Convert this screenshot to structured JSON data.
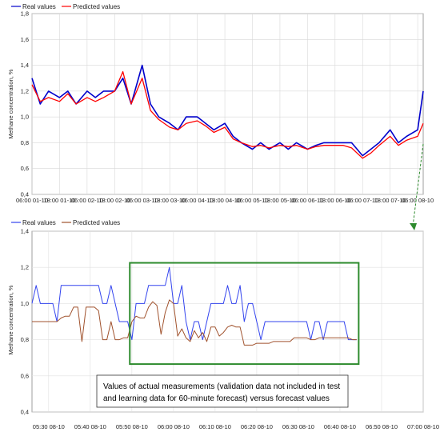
{
  "chart_data": [
    {
      "type": "line",
      "legend": [
        "Real values",
        "Predicted values"
      ],
      "legend_position": "top-left",
      "ylabel": "Methane concentration, %",
      "ylim": [
        0.4,
        1.8
      ],
      "yticks": [
        "0,4",
        "0,6",
        "0,8",
        "1,0",
        "1,2",
        "1,4",
        "1,6",
        "1,8"
      ],
      "xticks": [
        "06:00 01-10",
        "18:00 01-10",
        "06:00 02-10",
        "18:00 02-10",
        "06:00 03-10",
        "18:00 03-10",
        "06:00 04-10",
        "18:00 04-10",
        "06:00 05-10",
        "18:00 05-10",
        "06:00 06-10",
        "18:00 06-10",
        "06:00 07-10",
        "18:00 07-10",
        "06:00 08-10"
      ],
      "grid": true,
      "colors": {
        "real": "#0000cc",
        "predicted": "#ff0000"
      },
      "series": [
        {
          "name": "Real values",
          "x": [
            0,
            0.3,
            0.6,
            1,
            1.3,
            1.6,
            2,
            2.3,
            2.6,
            3,
            3.3,
            3.6,
            4,
            4.3,
            4.6,
            5,
            5.3,
            5.6,
            6,
            6.3,
            6.6,
            7,
            7.3,
            7.6,
            8,
            8.3,
            8.6,
            9,
            9.3,
            9.6,
            10,
            10.3,
            10.6,
            11,
            11.3,
            11.6,
            12,
            12.3,
            12.6,
            13,
            13.3,
            13.6,
            14,
            14.2
          ],
          "values": [
            1.3,
            1.1,
            1.2,
            1.15,
            1.2,
            1.1,
            1.2,
            1.15,
            1.2,
            1.2,
            1.3,
            1.1,
            1.4,
            1.1,
            1.0,
            0.95,
            0.9,
            1.0,
            1.0,
            0.95,
            0.9,
            0.95,
            0.85,
            0.8,
            0.75,
            0.8,
            0.75,
            0.8,
            0.75,
            0.8,
            0.75,
            0.78,
            0.8,
            0.8,
            0.8,
            0.8,
            0.7,
            0.75,
            0.8,
            0.9,
            0.8,
            0.85,
            0.9,
            1.2
          ]
        },
        {
          "name": "Predicted values",
          "x": [
            0,
            0.3,
            0.6,
            1,
            1.3,
            1.6,
            2,
            2.3,
            2.6,
            3,
            3.3,
            3.6,
            4,
            4.3,
            4.6,
            5,
            5.3,
            5.6,
            6,
            6.3,
            6.6,
            7,
            7.3,
            7.6,
            8,
            8.3,
            8.6,
            9,
            9.3,
            9.6,
            10,
            10.3,
            10.6,
            11,
            11.3,
            11.6,
            12,
            12.3,
            12.6,
            13,
            13.3,
            13.6,
            14,
            14.2
          ],
          "values": [
            1.25,
            1.12,
            1.15,
            1.12,
            1.18,
            1.1,
            1.15,
            1.12,
            1.15,
            1.2,
            1.35,
            1.1,
            1.3,
            1.05,
            0.98,
            0.92,
            0.9,
            0.95,
            0.97,
            0.93,
            0.88,
            0.92,
            0.83,
            0.8,
            0.77,
            0.78,
            0.76,
            0.78,
            0.77,
            0.78,
            0.75,
            0.77,
            0.78,
            0.78,
            0.78,
            0.76,
            0.68,
            0.72,
            0.78,
            0.85,
            0.78,
            0.82,
            0.85,
            0.95
          ]
        }
      ]
    },
    {
      "type": "line",
      "legend": [
        "Real values",
        "Predicted values"
      ],
      "legend_position": "top-left",
      "ylabel": "Methane concentration, %",
      "ylim": [
        0.4,
        1.4
      ],
      "yticks": [
        "0,4",
        "0,6",
        "0,8",
        "1,0",
        "1,2",
        "1,4"
      ],
      "xticks": [
        "05:30 08-10",
        "05:40 08-10",
        "05:50 08-10",
        "06:00 08-10",
        "06:10 08-10",
        "06:20 08-10",
        "06:30 08-10",
        "06:40 08-10",
        "06:50 08-10",
        "07:00 08-10"
      ],
      "xlim": [
        0,
        94
      ],
      "grid": true,
      "colors": {
        "real": "#3344ee",
        "predicted": "#a0522d"
      },
      "highlight_box": {
        "x_range": [
          23.5,
          78.5
        ],
        "y_range": [
          0.665,
          1.225
        ],
        "color": "#2e8b2e"
      },
      "annotation": [
        "Values of actual measurements (validation data not included in test",
        "and learning data for 60-minute forecast) versus forecast values"
      ],
      "series": [
        {
          "name": "Real values",
          "x": [
            0,
            1,
            2,
            3,
            4,
            5,
            6,
            7,
            8,
            9,
            10,
            11,
            12,
            13,
            14,
            15,
            16,
            17,
            18,
            19,
            20,
            21,
            22,
            23,
            24,
            25,
            26,
            27,
            28,
            29,
            30,
            31,
            32,
            33,
            34,
            35,
            36,
            37,
            38,
            39,
            40,
            41,
            42,
            43,
            44,
            45,
            46,
            47,
            48,
            49,
            50,
            51,
            52,
            53,
            54,
            55,
            56,
            57,
            58,
            59,
            60,
            61,
            62,
            63,
            64,
            65,
            66,
            67,
            68,
            69,
            70,
            71,
            72,
            73,
            74,
            75,
            76,
            77,
            78
          ],
          "values": [
            1.0,
            1.1,
            1.0,
            1.0,
            1.0,
            1.0,
            0.9,
            1.1,
            1.1,
            1.1,
            1.1,
            1.1,
            1.1,
            1.1,
            1.1,
            1.1,
            1.1,
            1.0,
            1.0,
            1.1,
            1.0,
            0.9,
            0.9,
            0.9,
            0.8,
            1.0,
            1.0,
            1.0,
            1.1,
            1.1,
            1.1,
            1.1,
            1.1,
            1.2,
            1.0,
            1.0,
            1.1,
            0.9,
            0.8,
            0.9,
            0.9,
            0.8,
            0.9,
            1.0,
            1.0,
            1.0,
            1.0,
            1.1,
            1.0,
            1.0,
            1.1,
            0.9,
            1.0,
            1.0,
            0.9,
            0.8,
            0.9,
            0.9,
            0.9,
            0.9,
            0.9,
            0.9,
            0.9,
            0.9,
            0.9,
            0.9,
            0.9,
            0.8,
            0.9,
            0.9,
            0.8,
            0.9,
            0.9,
            0.9,
            0.9,
            0.9,
            0.8,
            0.8,
            0.8
          ]
        },
        {
          "name": "Predicted values",
          "x": [
            0,
            1,
            2,
            3,
            4,
            5,
            6,
            7,
            8,
            9,
            10,
            11,
            12,
            13,
            14,
            15,
            16,
            17,
            18,
            19,
            20,
            21,
            22,
            23,
            24,
            25,
            26,
            27,
            28,
            29,
            30,
            31,
            32,
            33,
            34,
            35,
            36,
            37,
            38,
            39,
            40,
            41,
            42,
            43,
            44,
            45,
            46,
            47,
            48,
            49,
            50,
            51,
            52,
            53,
            54,
            55,
            56,
            57,
            58,
            59,
            60,
            61,
            62,
            63,
            64,
            65,
            66,
            67,
            68,
            69,
            70,
            71,
            72,
            73,
            74,
            75,
            76,
            77,
            78
          ],
          "values": [
            0.9,
            0.9,
            0.9,
            0.9,
            0.9,
            0.9,
            0.9,
            0.92,
            0.93,
            0.93,
            0.98,
            0.98,
            0.79,
            0.98,
            0.98,
            0.98,
            0.96,
            0.8,
            0.8,
            0.9,
            0.8,
            0.8,
            0.81,
            0.81,
            0.9,
            0.93,
            0.92,
            0.92,
            0.98,
            1.01,
            0.99,
            0.83,
            0.95,
            1.02,
            1.0,
            0.82,
            0.86,
            0.81,
            0.79,
            0.85,
            0.81,
            0.84,
            0.79,
            0.87,
            0.87,
            0.82,
            0.84,
            0.87,
            0.88,
            0.87,
            0.87,
            0.77,
            0.77,
            0.77,
            0.78,
            0.78,
            0.78,
            0.78,
            0.79,
            0.79,
            0.79,
            0.79,
            0.79,
            0.81,
            0.81,
            0.81,
            0.81,
            0.8,
            0.8,
            0.81,
            0.81,
            0.81,
            0.81,
            0.81,
            0.81,
            0.81,
            0.81,
            0.8,
            0.8
          ]
        }
      ]
    }
  ]
}
